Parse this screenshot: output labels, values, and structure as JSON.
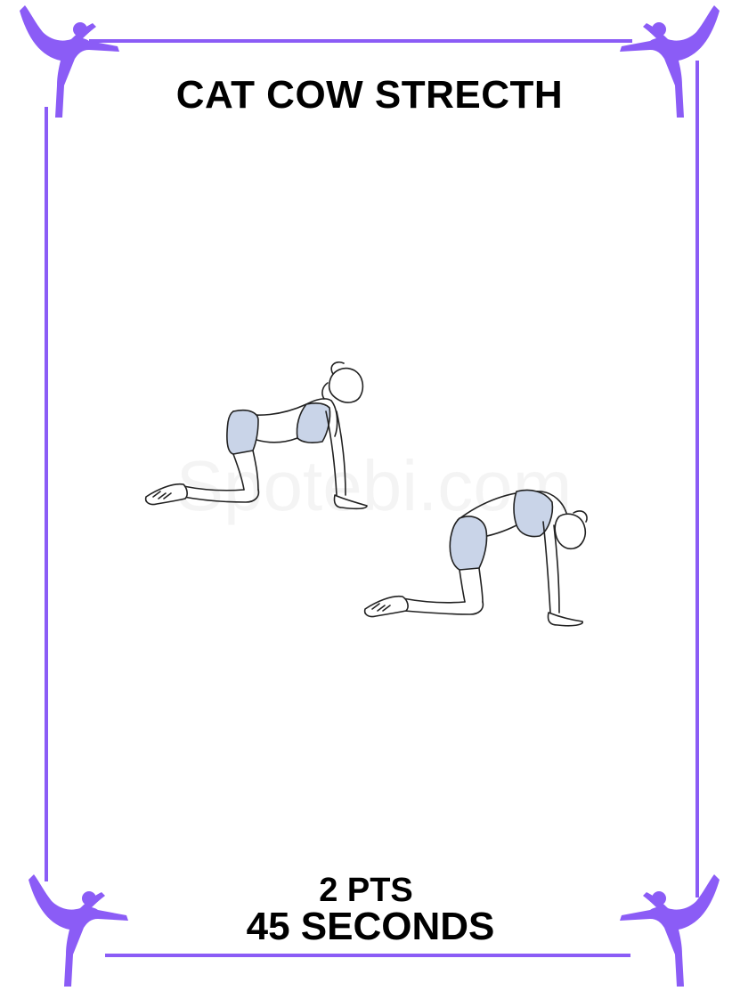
{
  "card": {
    "title": "CAT COW STRECTH",
    "points": "2 PTS",
    "duration": "45 SECONDS",
    "watermark": "Spotebi.com"
  },
  "colors": {
    "accent": "#8b5cf6",
    "shorts": "#c9d4e8",
    "text": "#000000"
  },
  "icons": {
    "corner": "yoga-dancer-pose-icon"
  }
}
